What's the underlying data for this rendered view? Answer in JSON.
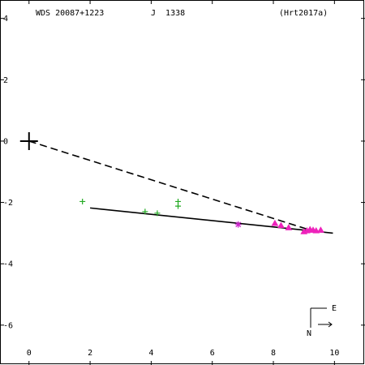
{
  "header": {
    "wds_id": "WDS 20087+1223",
    "discoverer": "J  1338",
    "reference": "(Hrt2017a)"
  },
  "compass": {
    "east_label": "E",
    "north_label": "N"
  },
  "chart_data": {
    "type": "scatter",
    "title": "",
    "xlabel": "",
    "ylabel": "",
    "xlim": [
      -0.95,
      11.0
    ],
    "ylim": [
      -7.3,
      4.6
    ],
    "x_ticks": [
      0,
      2,
      4,
      6,
      8,
      10
    ],
    "y_ticks": [
      4,
      2,
      0,
      -2,
      -4,
      -6
    ],
    "x_tick_labels": [
      "0",
      "2",
      "4",
      "6",
      "8",
      "10"
    ],
    "y_tick_labels": [
      "4",
      "2",
      "0",
      "-2",
      "-4",
      "-6"
    ],
    "grid": false,
    "primary_star": {
      "x": 0,
      "y": 0,
      "marker": "cross"
    },
    "series": [
      {
        "marker": "plus",
        "color": "#22aa22",
        "points": [
          {
            "x": 1.75,
            "y": -1.97
          },
          {
            "x": 3.8,
            "y": -2.3
          },
          {
            "x": 4.2,
            "y": -2.35
          },
          {
            "x": 4.88,
            "y": -1.97
          },
          {
            "x": 4.88,
            "y": -2.12
          }
        ]
      },
      {
        "marker": "star",
        "color": "#cc22cc",
        "points": [
          {
            "x": 6.85,
            "y": -2.72
          }
        ]
      },
      {
        "marker": "triangle",
        "color": "#ee22bb",
        "points": [
          {
            "x": 8.05,
            "y": -2.68
          },
          {
            "x": 8.25,
            "y": -2.75
          },
          {
            "x": 8.5,
            "y": -2.82
          },
          {
            "x": 9.0,
            "y": -2.95
          },
          {
            "x": 9.1,
            "y": -2.92
          },
          {
            "x": 9.2,
            "y": -2.88
          },
          {
            "x": 9.3,
            "y": -2.9
          },
          {
            "x": 9.4,
            "y": -2.92
          },
          {
            "x": 9.55,
            "y": -2.9
          }
        ]
      }
    ],
    "orbit_line": {
      "x": [
        2.0,
        9.95
      ],
      "y": [
        -2.18,
        -3.0
      ],
      "style": "solid"
    },
    "line_of_nodes": {
      "x": [
        0.0,
        9.2
      ],
      "y": [
        0.0,
        -2.9
      ],
      "style": "dashed"
    }
  }
}
